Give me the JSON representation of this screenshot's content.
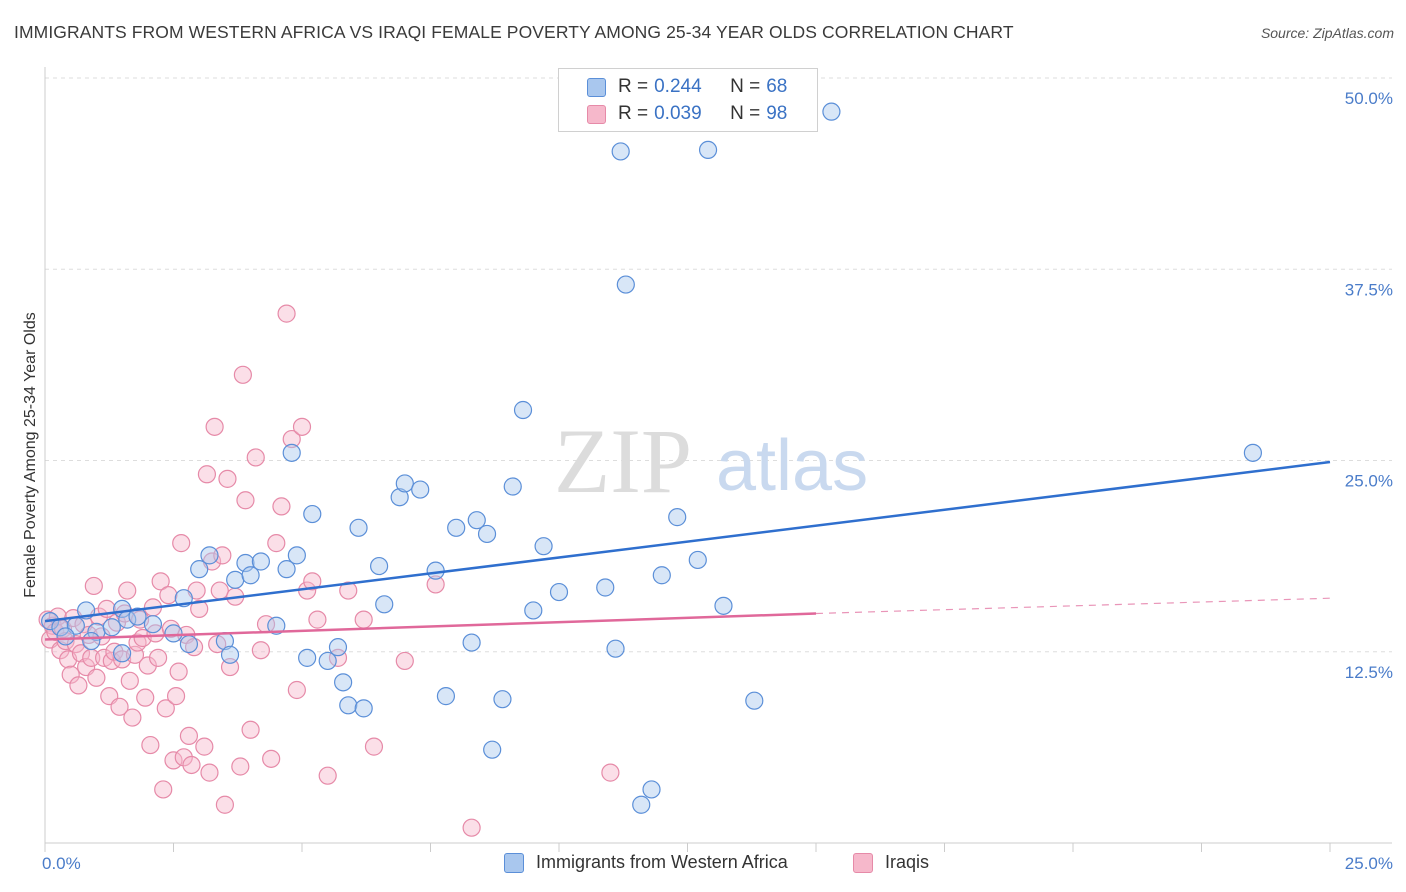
{
  "title": "IMMIGRANTS FROM WESTERN AFRICA VS IRAQI FEMALE POVERTY AMONG 25-34 YEAR OLDS CORRELATION CHART",
  "source": "Source: ZipAtlas.com",
  "watermark": {
    "zip": "ZIP",
    "atlas": "atlas"
  },
  "legend": {
    "rows": [
      {
        "r_label": "R = ",
        "r_value": "0.244",
        "n_label": "N = ",
        "n_value": "68"
      },
      {
        "r_label": "R = ",
        "r_value": "0.039",
        "n_label": "N = ",
        "n_value": "98"
      }
    ]
  },
  "bottom_legend": {
    "items": [
      "Immigrants from Western Africa",
      "Iraqis"
    ]
  },
  "colors": {
    "blue_fill": "#a9c7ee",
    "blue_stroke": "#5b8fd8",
    "blue_line": "#2f6fce",
    "pink_fill": "#f6b8cb",
    "pink_stroke": "#e68aa8",
    "pink_line": "#e0689a",
    "grid": "#dddddd",
    "axis_text": "#4a7cc9"
  },
  "chart_data": {
    "type": "scatter",
    "title": "IMMIGRANTS FROM WESTERN AFRICA VS IRAQI FEMALE POVERTY AMONG 25-34 YEAR OLDS CORRELATION CHART",
    "xlabel": "",
    "ylabel": "Female Poverty Among 25-34 Year Olds",
    "xlim": [
      0,
      25
    ],
    "ylim": [
      0,
      50
    ],
    "x_tick_labels": [
      "0.0%",
      "25.0%"
    ],
    "y_ticks": [
      12.5,
      25.0,
      37.5,
      50.0
    ],
    "y_tick_labels": [
      "12.5%",
      "25.0%",
      "37.5%",
      "50.0%"
    ],
    "series": [
      {
        "name": "Immigrants from Western Africa",
        "color": "blue",
        "R": 0.244,
        "N": 68,
        "trend": {
          "x": [
            0,
            25
          ],
          "y": [
            14.5,
            24.9
          ]
        },
        "points": [
          [
            0.1,
            14.5
          ],
          [
            0.3,
            14.1
          ],
          [
            0.6,
            14.2
          ],
          [
            0.8,
            15.2
          ],
          [
            1.0,
            13.8
          ],
          [
            1.3,
            14.1
          ],
          [
            1.5,
            15.3
          ],
          [
            1.6,
            14.6
          ],
          [
            1.8,
            14.8
          ],
          [
            0.4,
            13.5
          ],
          [
            0.9,
            13.2
          ],
          [
            1.5,
            12.4
          ],
          [
            2.1,
            14.3
          ],
          [
            2.5,
            13.7
          ],
          [
            2.7,
            16.0
          ],
          [
            2.8,
            13.0
          ],
          [
            3.0,
            17.9
          ],
          [
            3.2,
            18.8
          ],
          [
            3.5,
            13.2
          ],
          [
            3.6,
            12.3
          ],
          [
            3.7,
            17.2
          ],
          [
            3.9,
            18.3
          ],
          [
            4.0,
            17.5
          ],
          [
            4.2,
            18.4
          ],
          [
            4.5,
            14.2
          ],
          [
            4.7,
            17.9
          ],
          [
            4.8,
            25.5
          ],
          [
            4.9,
            18.8
          ],
          [
            5.1,
            12.1
          ],
          [
            5.2,
            21.5
          ],
          [
            5.5,
            11.9
          ],
          [
            5.7,
            12.8
          ],
          [
            5.8,
            10.5
          ],
          [
            5.9,
            9.0
          ],
          [
            6.1,
            20.6
          ],
          [
            6.2,
            8.8
          ],
          [
            6.5,
            18.1
          ],
          [
            6.6,
            15.6
          ],
          [
            6.9,
            22.6
          ],
          [
            7.0,
            23.5
          ],
          [
            7.3,
            23.1
          ],
          [
            7.6,
            17.8
          ],
          [
            7.8,
            9.6
          ],
          [
            8.0,
            20.6
          ],
          [
            8.3,
            13.1
          ],
          [
            8.4,
            21.1
          ],
          [
            8.6,
            20.2
          ],
          [
            8.7,
            6.1
          ],
          [
            8.9,
            9.4
          ],
          [
            9.1,
            23.3
          ],
          [
            9.3,
            28.3
          ],
          [
            9.5,
            15.2
          ],
          [
            9.7,
            19.4
          ],
          [
            10.0,
            16.4
          ],
          [
            10.9,
            16.7
          ],
          [
            11.1,
            12.7
          ],
          [
            11.2,
            45.2
          ],
          [
            11.3,
            36.5
          ],
          [
            11.6,
            2.5
          ],
          [
            11.8,
            3.5
          ],
          [
            12.0,
            17.5
          ],
          [
            12.3,
            21.3
          ],
          [
            12.7,
            18.5
          ],
          [
            12.9,
            45.3
          ],
          [
            13.2,
            15.5
          ],
          [
            13.8,
            9.3
          ],
          [
            15.3,
            47.8
          ],
          [
            23.5,
            25.5
          ]
        ]
      },
      {
        "name": "Iraqis",
        "color": "pink",
        "R": 0.039,
        "N": 98,
        "trend": {
          "x": [
            0,
            15
          ],
          "y": [
            13.3,
            15.0
          ]
        },
        "trend_dashed": {
          "x": [
            15,
            25
          ],
          "y": [
            15.0,
            16.0
          ]
        },
        "points": [
          [
            0.05,
            14.6
          ],
          [
            0.1,
            13.3
          ],
          [
            0.15,
            14.2
          ],
          [
            0.2,
            13.8
          ],
          [
            0.25,
            14.8
          ],
          [
            0.3,
            12.6
          ],
          [
            0.35,
            14.0
          ],
          [
            0.4,
            13.2
          ],
          [
            0.45,
            12.0
          ],
          [
            0.5,
            11.0
          ],
          [
            0.55,
            14.7
          ],
          [
            0.6,
            13.0
          ],
          [
            0.65,
            10.3
          ],
          [
            0.7,
            12.4
          ],
          [
            0.75,
            14.3
          ],
          [
            0.8,
            11.5
          ],
          [
            0.85,
            13.6
          ],
          [
            0.9,
            12.1
          ],
          [
            0.95,
            16.8
          ],
          [
            1.0,
            10.8
          ],
          [
            1.05,
            14.8
          ],
          [
            1.1,
            13.5
          ],
          [
            1.15,
            12.1
          ],
          [
            1.2,
            15.3
          ],
          [
            1.25,
            9.6
          ],
          [
            1.3,
            11.9
          ],
          [
            1.35,
            12.5
          ],
          [
            1.4,
            14.4
          ],
          [
            1.45,
            8.9
          ],
          [
            1.5,
            12.0
          ],
          [
            1.55,
            15.0
          ],
          [
            1.6,
            16.5
          ],
          [
            1.65,
            10.6
          ],
          [
            1.7,
            8.2
          ],
          [
            1.75,
            12.3
          ],
          [
            1.8,
            13.1
          ],
          [
            1.85,
            14.6
          ],
          [
            1.9,
            13.4
          ],
          [
            1.95,
            9.5
          ],
          [
            2.0,
            11.6
          ],
          [
            2.05,
            6.4
          ],
          [
            2.1,
            15.4
          ],
          [
            2.15,
            13.7
          ],
          [
            2.2,
            12.1
          ],
          [
            2.25,
            17.1
          ],
          [
            2.3,
            3.5
          ],
          [
            2.35,
            8.8
          ],
          [
            2.4,
            16.2
          ],
          [
            2.45,
            14.0
          ],
          [
            2.5,
            5.4
          ],
          [
            2.55,
            9.6
          ],
          [
            2.6,
            11.2
          ],
          [
            2.65,
            19.6
          ],
          [
            2.7,
            5.6
          ],
          [
            2.75,
            13.6
          ],
          [
            2.8,
            7.0
          ],
          [
            2.85,
            5.1
          ],
          [
            2.9,
            12.8
          ],
          [
            2.95,
            16.5
          ],
          [
            3.0,
            15.3
          ],
          [
            3.1,
            6.3
          ],
          [
            3.15,
            24.1
          ],
          [
            3.2,
            4.6
          ],
          [
            3.25,
            18.4
          ],
          [
            3.3,
            27.2
          ],
          [
            3.35,
            13.0
          ],
          [
            3.4,
            16.5
          ],
          [
            3.45,
            18.8
          ],
          [
            3.5,
            2.5
          ],
          [
            3.55,
            23.8
          ],
          [
            3.6,
            11.5
          ],
          [
            3.7,
            16.1
          ],
          [
            3.8,
            5.0
          ],
          [
            3.85,
            30.6
          ],
          [
            3.9,
            22.4
          ],
          [
            4.0,
            7.4
          ],
          [
            4.1,
            25.2
          ],
          [
            4.2,
            12.6
          ],
          [
            4.3,
            14.3
          ],
          [
            4.4,
            5.5
          ],
          [
            4.5,
            19.6
          ],
          [
            4.6,
            22.0
          ],
          [
            4.7,
            34.6
          ],
          [
            4.8,
            26.4
          ],
          [
            4.9,
            10.0
          ],
          [
            5.0,
            27.2
          ],
          [
            5.1,
            16.5
          ],
          [
            5.2,
            17.1
          ],
          [
            5.3,
            14.6
          ],
          [
            5.5,
            4.4
          ],
          [
            5.7,
            12.1
          ],
          [
            5.9,
            16.5
          ],
          [
            6.2,
            14.6
          ],
          [
            6.4,
            6.3
          ],
          [
            7.0,
            11.9
          ],
          [
            7.6,
            16.9
          ],
          [
            8.3,
            1.0
          ],
          [
            11.0,
            4.6
          ]
        ]
      }
    ]
  }
}
